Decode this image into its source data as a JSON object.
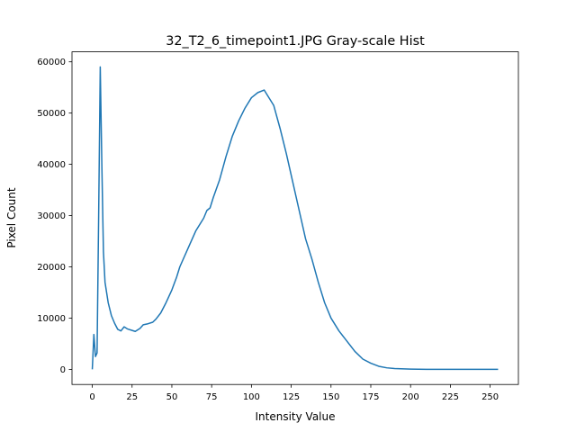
{
  "chart_data": {
    "type": "line",
    "title": "32_T2_6_timepoint1.JPG Gray-scale Hist",
    "xlabel": "Intensity Value",
    "ylabel": "Pixel Count",
    "x": [
      0,
      1,
      2,
      3,
      4,
      5,
      6,
      7,
      8,
      9,
      10,
      12,
      14,
      16,
      18,
      20,
      22,
      25,
      27,
      30,
      32,
      35,
      38,
      40,
      43,
      46,
      50,
      53,
      55,
      60,
      65,
      70,
      72,
      74,
      76,
      80,
      84,
      88,
      92,
      96,
      100,
      104,
      108,
      110,
      114,
      118,
      122,
      126,
      130,
      134,
      138,
      142,
      146,
      150,
      155,
      160,
      165,
      170,
      175,
      180,
      185,
      190,
      200,
      210,
      230,
      255
    ],
    "series": [
      {
        "name": "Pixel Count",
        "color": "#1f77b4",
        "values": [
          0,
          6800,
          2500,
          3200,
          30000,
          59000,
          40000,
          23000,
          17000,
          15000,
          13000,
          10500,
          9000,
          7800,
          7500,
          8300,
          7900,
          7600,
          7400,
          8000,
          8700,
          8900,
          9200,
          9800,
          11000,
          12800,
          15500,
          18000,
          20000,
          23500,
          27000,
          29500,
          31000,
          31500,
          33500,
          37000,
          41500,
          45500,
          48500,
          51000,
          53000,
          54000,
          54500,
          53500,
          51500,
          47000,
          42000,
          36500,
          31000,
          25500,
          21500,
          17000,
          13000,
          10000,
          7500,
          5500,
          3500,
          2000,
          1200,
          600,
          300,
          150,
          50,
          0,
          0,
          0
        ]
      }
    ],
    "xlim": [
      -12.75,
      267.75
    ],
    "ylim": [
      -2950,
      61950
    ],
    "xticks": [
      0,
      25,
      50,
      75,
      100,
      125,
      150,
      175,
      200,
      225,
      250
    ],
    "yticks": [
      0,
      10000,
      20000,
      30000,
      40000,
      50000,
      60000
    ],
    "grid": false
  }
}
